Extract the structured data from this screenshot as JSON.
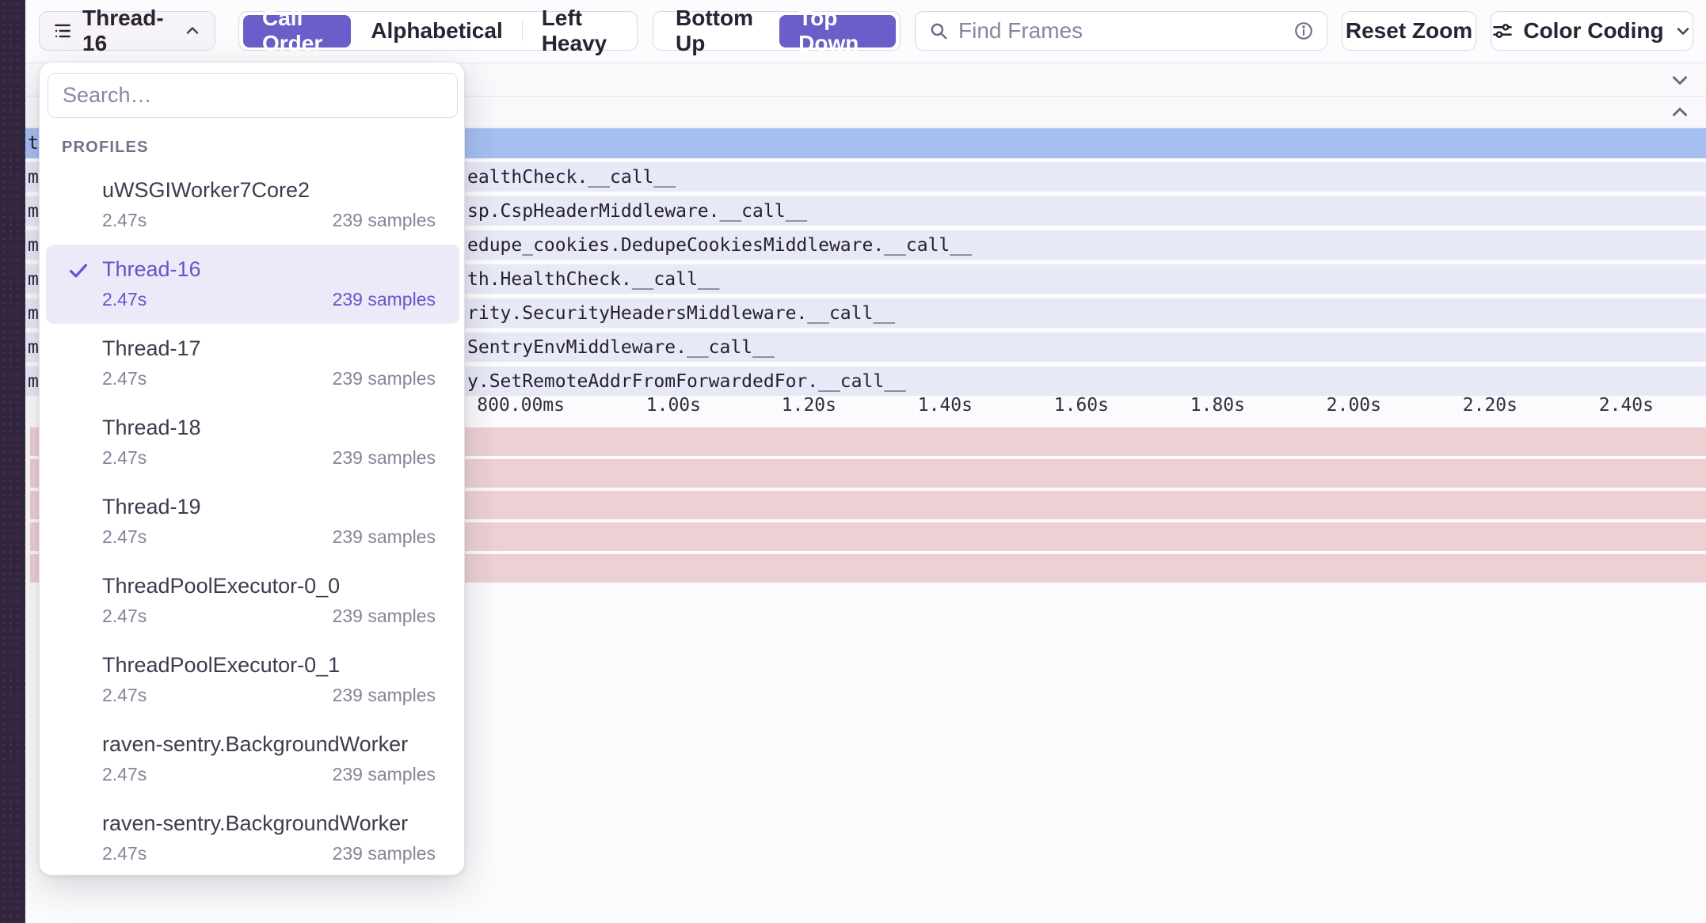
{
  "toolbar": {
    "thread_selector_label": "Thread-16",
    "sort_options": [
      "Call Order",
      "Alphabetical",
      "Left Heavy"
    ],
    "sort_selected": "Call Order",
    "direction_options": [
      "Bottom Up",
      "Top Down"
    ],
    "direction_selected": "Top Down",
    "find_frames_placeholder": "Find Frames",
    "reset_zoom_label": "Reset Zoom",
    "color_coding_label": "Color Coding"
  },
  "dropdown": {
    "search_placeholder": "Search…",
    "section_label": "PROFILES",
    "items": [
      {
        "name": "uWSGIWorker7Core2",
        "duration": "2.47s",
        "samples": "239 samples",
        "selected": false
      },
      {
        "name": "Thread-16",
        "duration": "2.47s",
        "samples": "239 samples",
        "selected": true
      },
      {
        "name": "Thread-17",
        "duration": "2.47s",
        "samples": "239 samples",
        "selected": false
      },
      {
        "name": "Thread-18",
        "duration": "2.47s",
        "samples": "239 samples",
        "selected": false
      },
      {
        "name": "Thread-19",
        "duration": "2.47s",
        "samples": "239 samples",
        "selected": false
      },
      {
        "name": "ThreadPoolExecutor-0_0",
        "duration": "2.47s",
        "samples": "239 samples",
        "selected": false
      },
      {
        "name": "ThreadPoolExecutor-0_1",
        "duration": "2.47s",
        "samples": "239 samples",
        "selected": false
      },
      {
        "name": "raven-sentry.BackgroundWorker",
        "duration": "2.47s",
        "samples": "239 samples",
        "selected": false
      },
      {
        "name": "raven-sentry.BackgroundWorker",
        "duration": "2.47s",
        "samples": "239 samples",
        "selected": false
      }
    ]
  },
  "flamegraph": {
    "root_row": {
      "left_fragment": "t",
      "color": "#A5BFF1"
    },
    "frame_rows": [
      {
        "left_fragment": "m",
        "label": "ealthCheck.__call__"
      },
      {
        "left_fragment": "m",
        "label": "sp.CspHeaderMiddleware.__call__"
      },
      {
        "left_fragment": "m",
        "label": "edupe_cookies.DedupeCookiesMiddleware.__call__"
      },
      {
        "left_fragment": "m",
        "label": "th.HealthCheck.__call__"
      },
      {
        "left_fragment": "m",
        "label": "rity.SecurityHeadersMiddleware.__call__"
      },
      {
        "left_fragment": "m",
        "label": "SentryEnvMiddleware.__call__"
      },
      {
        "left_fragment": "m",
        "label": "y.SetRemoteAddrFromForwardedFor.__call__"
      }
    ],
    "time_axis": {
      "ticks": [
        {
          "label": "800.00ms",
          "t": 0.8
        },
        {
          "label": "1.00s",
          "t": 1.0
        },
        {
          "label": "1.20s",
          "t": 1.2
        },
        {
          "label": "1.40s",
          "t": 1.4
        },
        {
          "label": "1.60s",
          "t": 1.6
        },
        {
          "label": "1.80s",
          "t": 1.8
        },
        {
          "label": "2.00s",
          "t": 2.0
        },
        {
          "label": "2.20s",
          "t": 2.2
        },
        {
          "label": "2.40s",
          "t": 2.4
        }
      ],
      "gridline_times_s": [
        0.2,
        0.4,
        0.6,
        0.8,
        1.0,
        1.2,
        1.4,
        1.6,
        1.8,
        2.0,
        2.2,
        2.4
      ]
    },
    "pink_rows": [
      {
        "left_fragment": "-"
      },
      {
        "left_fragment": "-"
      },
      {
        "left_fragment": "l"
      },
      {
        "left_fragment": "-"
      },
      {
        "left_fragment": "-"
      }
    ],
    "colors": {
      "accent_purple": "#6A5EC8",
      "frame_lavender": "#E7E9F7",
      "frame_blue": "#A5BFF1",
      "frame_pink": "#EDD0D4"
    }
  }
}
